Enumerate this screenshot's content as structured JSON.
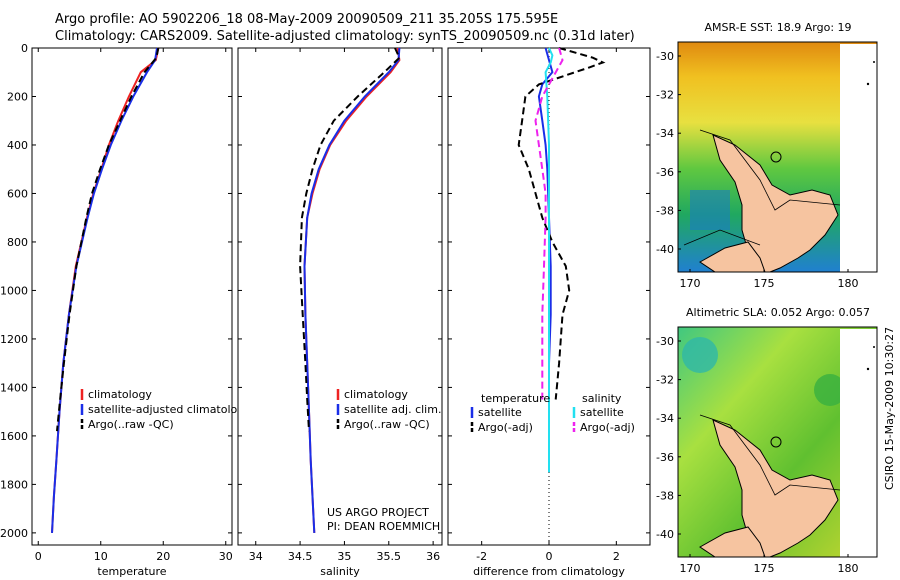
{
  "titles": {
    "line1": "Argo profile: AO 5902206_18 08-May-2009 20090509_211 35.205S 175.595E",
    "line2": "Climatology: CARS2009. Satellite-adjusted climatology: synTS_20090509.nc (0.31d later)"
  },
  "stamp": "CSIRO 15-May-2009 10:30:27",
  "credit": {
    "line1": "US ARGO PROJECT",
    "line2": "PI: DEAN ROEMMICH"
  },
  "colors": {
    "red": "#ee2222",
    "blue": "#1a2ee8",
    "black": "#000000",
    "cyan": "#22e0f0",
    "magenta": "#ee22ee"
  },
  "chart_data": [
    {
      "type": "line",
      "xlabel": "temperature",
      "xlim": [
        -1,
        31
      ],
      "ylim": [
        0,
        2050
      ],
      "xticks": [
        "0",
        "10",
        "20",
        "30"
      ],
      "yticks": [
        "0",
        "200",
        "400",
        "600",
        "800",
        "1000",
        "1200",
        "1400",
        "1600",
        "1800",
        "2000"
      ],
      "legend": [
        "climatology",
        "satellite-adjusted climatology",
        "Argo(..raw -QC)"
      ],
      "series": [
        {
          "name": "climatology",
          "color": "red",
          "dash": false,
          "x": [
            19.2,
            18.8,
            16.4,
            14.5,
            12.8,
            11.3,
            10.1,
            8.8,
            7.8,
            6.0,
            4.9,
            4.0,
            3.4,
            2.9,
            2.5,
            2.2
          ],
          "y": [
            0,
            50,
            100,
            200,
            300,
            400,
            500,
            600,
            700,
            900,
            1100,
            1300,
            1500,
            1700,
            1850,
            2000
          ]
        },
        {
          "name": "satellite-adjusted climatology",
          "color": "blue",
          "dash": false,
          "x": [
            19.0,
            18.7,
            17.4,
            15.2,
            13.3,
            11.6,
            10.2,
            8.9,
            7.9,
            6.1,
            4.9,
            4.0,
            3.4,
            2.9,
            2.5,
            2.2
          ],
          "y": [
            0,
            50,
            100,
            200,
            300,
            400,
            500,
            600,
            700,
            900,
            1100,
            1300,
            1500,
            1700,
            1850,
            2000
          ]
        },
        {
          "name": "Argo(..raw -QC)",
          "color": "black",
          "dash": true,
          "x": [
            19.2,
            18.9,
            17.0,
            14.9,
            13.1,
            11.3,
            9.9,
            8.6,
            7.7,
            6.1,
            5.0,
            4.1,
            3.5,
            3.0
          ],
          "y": [
            0,
            40,
            100,
            200,
            300,
            400,
            500,
            600,
            700,
            900,
            1100,
            1300,
            1450,
            1580
          ]
        }
      ]
    },
    {
      "type": "line",
      "xlabel": "salinity",
      "xlim": [
        33.8,
        36.1
      ],
      "ylim": [
        0,
        2050
      ],
      "xticks": [
        "34",
        "34.5",
        "35",
        "35.5",
        "36"
      ],
      "legend": [
        "climatology",
        "satellite adj. clim.",
        "Argo(..raw -QC)"
      ],
      "series": [
        {
          "name": "climatology",
          "color": "red",
          "dash": false,
          "x": [
            35.6,
            35.62,
            35.52,
            35.25,
            35.02,
            34.84,
            34.72,
            34.64,
            34.58,
            34.55,
            34.56,
            34.58,
            34.6,
            34.62,
            34.64,
            34.66
          ],
          "y": [
            0,
            50,
            100,
            200,
            300,
            400,
            500,
            600,
            700,
            900,
            1100,
            1300,
            1500,
            1700,
            1850,
            2000
          ]
        },
        {
          "name": "satellite adj. clim.",
          "color": "blue",
          "dash": false,
          "x": [
            35.62,
            35.61,
            35.5,
            35.23,
            35.0,
            34.83,
            34.71,
            34.63,
            34.58,
            34.55,
            34.56,
            34.58,
            34.6,
            34.62,
            34.64,
            34.66
          ],
          "y": [
            0,
            50,
            100,
            200,
            300,
            400,
            500,
            600,
            700,
            900,
            1100,
            1300,
            1500,
            1700,
            1850,
            2000
          ]
        },
        {
          "name": "Argo(..raw -QC)",
          "color": "black",
          "dash": true,
          "x": [
            35.57,
            35.62,
            35.45,
            35.15,
            34.88,
            34.73,
            34.64,
            34.57,
            34.52,
            34.5,
            34.53,
            34.56,
            34.58,
            34.6
          ],
          "y": [
            0,
            40,
            100,
            200,
            300,
            400,
            500,
            600,
            700,
            900,
            1100,
            1300,
            1450,
            1580
          ]
        }
      ]
    },
    {
      "type": "line",
      "xlabel": "difference from climatology",
      "xlim": [
        -3,
        3
      ],
      "ylim": [
        0,
        2050
      ],
      "xticks": [
        "-2",
        "0",
        "2"
      ],
      "legend_headers": [
        "temperature",
        "salinity"
      ],
      "legend": [
        "satellite",
        "Argo(-adj)",
        "satellite",
        "Argo(-adj)"
      ],
      "series": [
        {
          "name": "temperature satellite",
          "color": "blue",
          "dash": false,
          "x": [
            -0.1,
            0.0,
            0.1,
            -0.2,
            -0.3,
            -0.2,
            -0.1,
            -0.05,
            0.0,
            0.05,
            0.05,
            0.0
          ],
          "y": [
            0,
            50,
            100,
            150,
            200,
            300,
            400,
            500,
            700,
            900,
            1100,
            1300
          ]
        },
        {
          "name": "temperature Argo(-adj)",
          "color": "black",
          "dash": true,
          "x": [
            0.3,
            0.8,
            1.3,
            1.6,
            1.2,
            -0.3,
            -0.7,
            -0.8,
            -0.9,
            -0.6,
            -0.2,
            0.1,
            0.5,
            0.6,
            0.4,
            0.3,
            0.2
          ],
          "y": [
            0,
            20,
            40,
            60,
            80,
            150,
            200,
            300,
            400,
            500,
            700,
            800,
            900,
            1000,
            1100,
            1300,
            1450
          ]
        },
        {
          "name": "salinity satellite",
          "color": "cyan",
          "dash": false,
          "x": [
            0.0,
            0.1,
            0.05,
            -0.1,
            -0.05,
            0.0,
            0.0,
            0.0,
            0.0,
            0.0
          ],
          "y": [
            0,
            30,
            60,
            100,
            200,
            400,
            700,
            1000,
            1300,
            1750
          ]
        },
        {
          "name": "salinity Argo(-adj)",
          "color": "magenta",
          "dash": true,
          "x": [
            0.3,
            0.4,
            -0.2,
            -0.4,
            -0.3,
            -0.2,
            -0.1,
            -0.1,
            -0.15,
            -0.2,
            -0.2
          ],
          "y": [
            0,
            50,
            200,
            300,
            400,
            500,
            600,
            700,
            900,
            1100,
            1450
          ]
        }
      ]
    }
  ],
  "maps": [
    {
      "title": "AMSR-E SST: 18.9 Argo: 19",
      "xticks": [
        "170",
        "175",
        "180"
      ],
      "yticks": [
        "-30",
        "-32",
        "-34",
        "-36",
        "-38",
        "-40"
      ]
    },
    {
      "title": "Altimetric SLA: 0.052 Argo: 0.057",
      "xticks": [
        "170",
        "175",
        "180"
      ],
      "yticks": [
        "-30",
        "-32",
        "-34",
        "-36",
        "-38",
        "-40"
      ]
    }
  ]
}
